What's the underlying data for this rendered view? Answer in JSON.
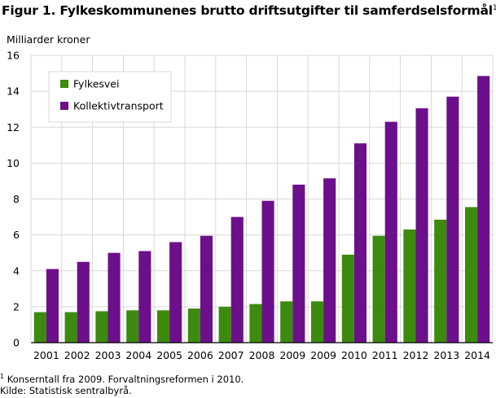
{
  "title": "Figur 1. Fylkeskommunenes brutto driftsutgifter til samferdselsformål",
  "title_footnote_mark": "1",
  "footnote_mark": "1",
  "footnote": "Konserntall fra 2009. Forvaltningsreformen i 2010.",
  "source": "Kilde: Statistisk sentralbyrå.",
  "colors": {
    "fylkesvei": "#3c8a0e",
    "kollektivtransport": "#6c0f8a",
    "grid": "#d8d8d8",
    "axis": "#000000"
  },
  "chart_data": {
    "type": "bar",
    "ylabel": "Milliarder  kroner",
    "ylim": [
      0,
      16
    ],
    "yticks": [
      0,
      2,
      4,
      6,
      8,
      10,
      12,
      14,
      16
    ],
    "grid": true,
    "legend_position": "top-left",
    "categories": [
      "2001",
      "2002",
      "2003",
      "2004",
      "2005",
      "2006",
      "2007",
      "2008",
      "2009",
      "2009",
      "2010",
      "2011",
      "2012",
      "2013",
      "2014"
    ],
    "series": [
      {
        "name": "Fylkesvei",
        "color": "#3c8a0e",
        "values": [
          1.7,
          1.7,
          1.75,
          1.8,
          1.8,
          1.9,
          2.0,
          2.15,
          2.3,
          2.3,
          4.9,
          5.95,
          6.3,
          6.85,
          7.55
        ]
      },
      {
        "name": "Kollektivtransport",
        "color": "#6c0f8a",
        "values": [
          4.1,
          4.5,
          5.0,
          5.1,
          5.6,
          5.95,
          7.0,
          7.9,
          8.8,
          9.15,
          11.1,
          12.3,
          13.05,
          13.7,
          14.85
        ]
      }
    ]
  }
}
